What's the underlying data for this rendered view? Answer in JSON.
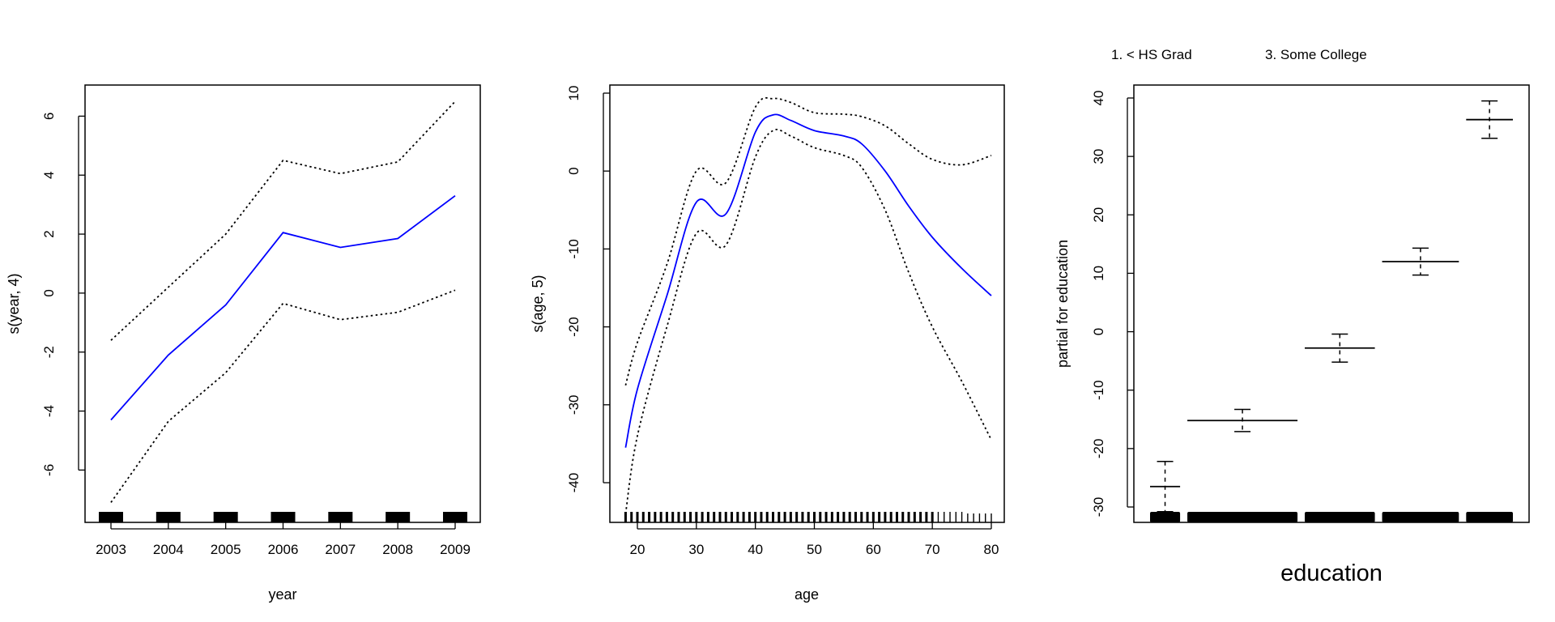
{
  "chart_data": [
    {
      "type": "line",
      "xlabel": "year",
      "ylabel": "s(year, 4)",
      "xlim": [
        2003,
        2009
      ],
      "ylim": [
        -7.5,
        7
      ],
      "xticks": [
        "2003",
        "2004",
        "2005",
        "2006",
        "2007",
        "2008",
        "2009"
      ],
      "yticks": [
        "-6",
        "-4",
        "-2",
        "0",
        "2",
        "4",
        "6"
      ],
      "x": [
        2003,
        2004,
        2005,
        2006,
        2007,
        2008,
        2009
      ],
      "fit": [
        -4.3,
        -2.1,
        -0.4,
        2.05,
        1.55,
        1.85,
        3.3
      ],
      "upper": [
        -1.6,
        0.2,
        2.0,
        4.5,
        4.05,
        4.45,
        6.5
      ],
      "lower": [
        -7.1,
        -4.35,
        -2.7,
        -0.35,
        -0.9,
        -0.65,
        0.1
      ],
      "rug": [
        2003,
        2004,
        2005,
        2006,
        2007,
        2008,
        2009
      ],
      "colors": {
        "fit": "#0000ff",
        "band": "#000000"
      }
    },
    {
      "type": "line",
      "xlabel": "age",
      "ylabel": "s(age, 5)",
      "xlim": [
        18,
        80
      ],
      "ylim": [
        -45,
        10
      ],
      "xticks": [
        "20",
        "30",
        "40",
        "50",
        "60",
        "70",
        "80"
      ],
      "yticks": [
        "-40",
        "-30",
        "-20",
        "-10",
        "0",
        "10"
      ],
      "x": [
        18,
        20,
        25,
        30,
        35,
        40,
        43,
        46,
        50,
        55,
        58,
        62,
        66,
        70,
        75,
        80
      ],
      "fit": [
        -35.5,
        -28,
        -16,
        -4,
        -5.5,
        5,
        7.2,
        6.5,
        5.2,
        4.5,
        3.5,
        0,
        -4.5,
        -8.5,
        -12.5,
        -16
      ],
      "upper": [
        -27.5,
        -22,
        -12,
        0,
        -1.5,
        8.2,
        9.3,
        8.8,
        7.5,
        7.3,
        7.0,
        5.8,
        3.5,
        1.5,
        0.8,
        2
      ],
      "lower": [
        -44,
        -34,
        -20,
        -8,
        -9.5,
        1.8,
        5.2,
        4.5,
        3,
        2,
        0.5,
        -5,
        -13,
        -20,
        -27,
        -34.5
      ],
      "rug_min": 18,
      "rug_max": 80,
      "colors": {
        "fit": "#0000ff",
        "band": "#000000"
      }
    },
    {
      "type": "errorbar",
      "xlabel": "education",
      "ylabel": "partial for education",
      "ylim": [
        -33,
        42
      ],
      "yticks": [
        "-30",
        "-20",
        "-10",
        "0",
        "10",
        "20",
        "30",
        "40"
      ],
      "category_labels": [
        "1. < HS Grad",
        "3. Some College"
      ],
      "levels": [
        {
          "estimate": -26.5,
          "upper": -22.2,
          "lower": -30.8,
          "weight": 0.09
        },
        {
          "estimate": -15.2,
          "upper": -13.3,
          "lower": -17.1,
          "weight": 0.33
        },
        {
          "estimate": -2.8,
          "upper": -0.4,
          "lower": -5.2,
          "weight": 0.21
        },
        {
          "estimate": 12.0,
          "upper": 14.3,
          "lower": 9.7,
          "weight": 0.23
        },
        {
          "estimate": 36.3,
          "upper": 39.5,
          "lower": 33.1,
          "weight": 0.14
        }
      ],
      "colors": {
        "marks": "#000000"
      }
    }
  ]
}
